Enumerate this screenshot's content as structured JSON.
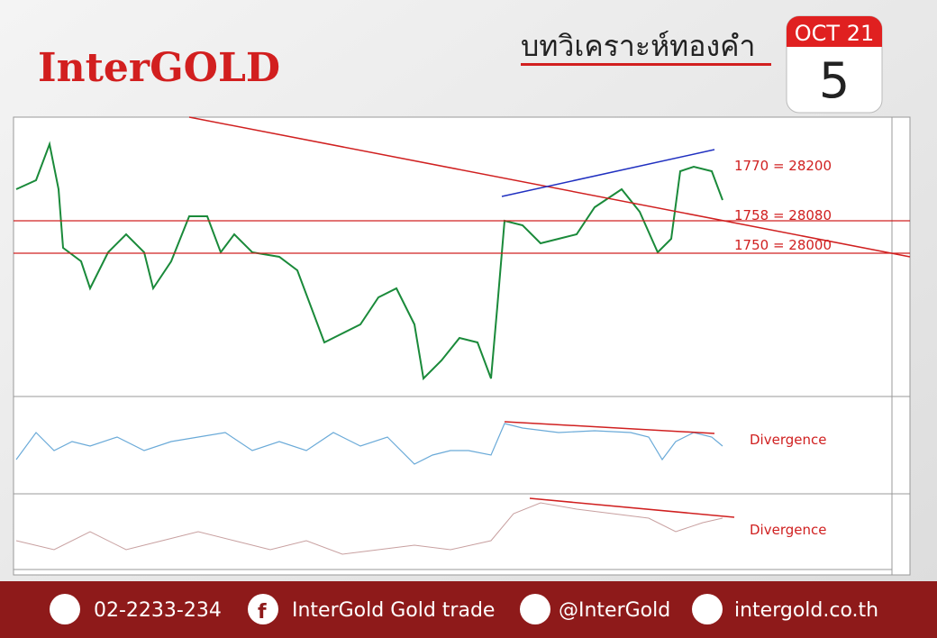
{
  "header": {
    "brand": "InterGOLD",
    "title": "บทวิเคราะห์ทองคำ",
    "date": {
      "month_year": "OCT 21",
      "day": "5"
    }
  },
  "annotations": {
    "levels": [
      "1770 = 28200",
      "1758 = 28080",
      "1750 = 28000"
    ],
    "rsi": "Divergence",
    "macd": "Divergence"
  },
  "footer": {
    "phone": "02-2233-234",
    "facebook": "InterGold Gold trade",
    "line": "@InterGold",
    "website": "intergold.co.th"
  }
}
